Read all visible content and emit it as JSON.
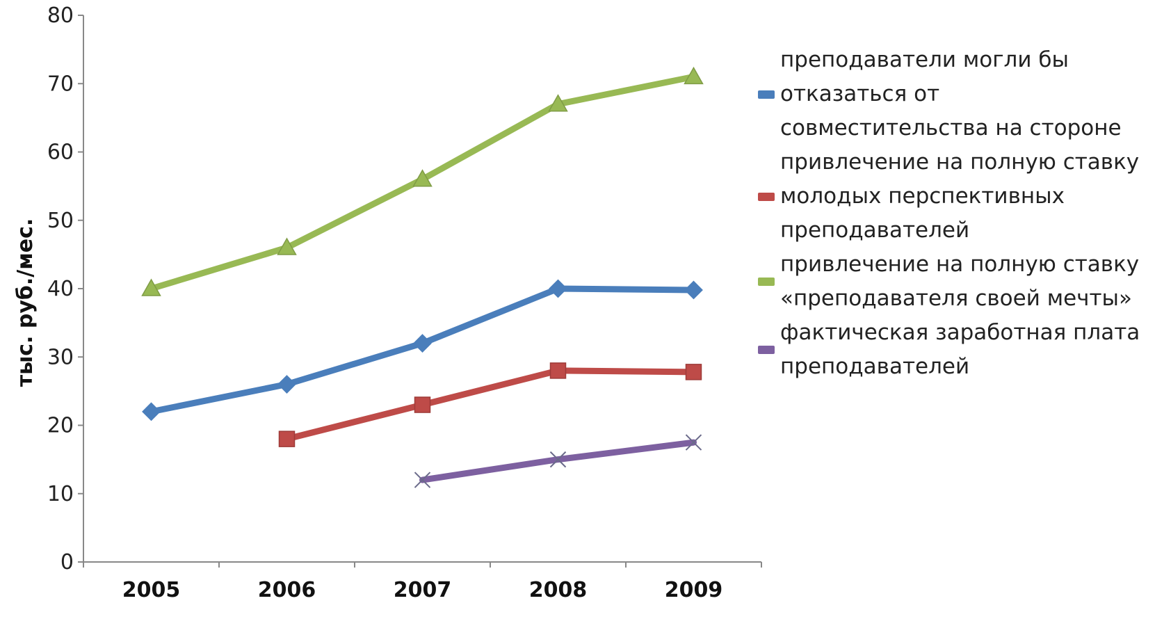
{
  "chart_data": {
    "type": "line",
    "title": "",
    "xlabel": "",
    "ylabel": "тыс. руб./мес.",
    "categories": [
      "2005",
      "2006",
      "2007",
      "2008",
      "2009"
    ],
    "ylim": [
      0,
      80
    ],
    "yticks": [
      0,
      10,
      20,
      30,
      40,
      50,
      60,
      70,
      80
    ],
    "grid": false,
    "legend_position": "right",
    "series": [
      {
        "name": "преподаватели могли бы отказаться от совместительства на стороне",
        "color": "#4a7ebb",
        "marker": "diamond",
        "values": [
          22,
          26,
          32,
          40,
          39.8
        ]
      },
      {
        "name": "привлечение на полную ставку молодых перспективных преподавателей",
        "color": "#be4b48",
        "marker": "square",
        "values": [
          null,
          18,
          23,
          28,
          27.8
        ]
      },
      {
        "name": "привлечение на полную ставку «преподавателя своей мечты»",
        "color": "#98b954",
        "marker": "triangle",
        "values": [
          40,
          46,
          56,
          67,
          71
        ]
      },
      {
        "name": "фактическая заработная плата преподавателей",
        "color": "#7d60a0",
        "marker": "x",
        "values": [
          null,
          null,
          12,
          15,
          17.5
        ]
      }
    ]
  }
}
